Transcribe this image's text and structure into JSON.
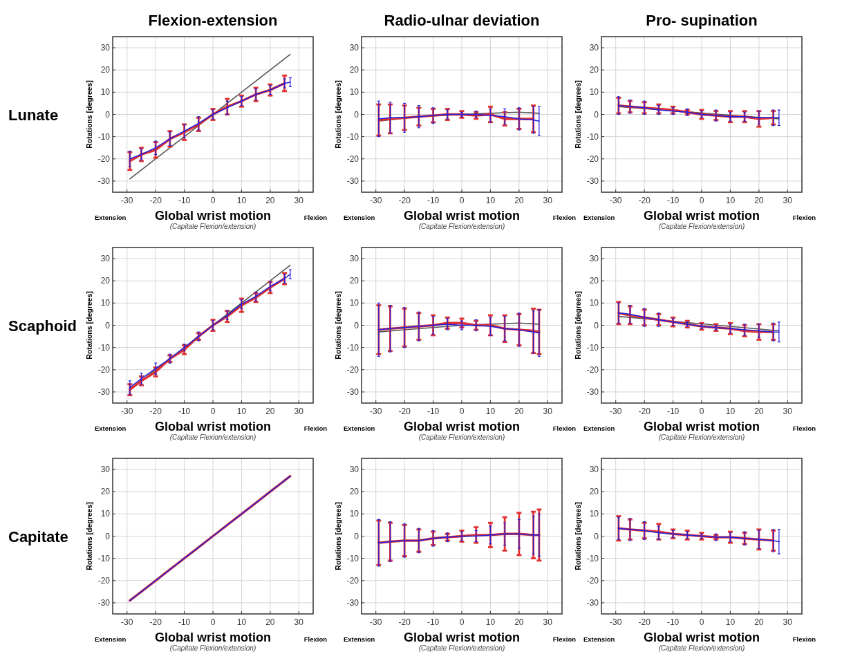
{
  "chart_data": [
    {
      "type": "line",
      "title": "Flexion-extension",
      "xlabel": "Global wrist motion",
      "ylabel": "Rotations [degrees]",
      "annotations": [
        "Extension",
        "Flexion",
        "(Capitate Flexion/extension)",
        "Lunate"
      ],
      "xlim": [
        -35,
        35
      ],
      "ylim": [
        -35,
        35
      ],
      "xticks": [
        -30,
        -20,
        -10,
        0,
        10,
        20,
        30
      ],
      "yticks": [
        -30,
        -20,
        -10,
        0,
        10,
        20,
        30
      ],
      "grid": true,
      "series": [
        {
          "color": "#555555",
          "x": [
            -29,
            27
          ],
          "values": [
            -29,
            27
          ]
        },
        {
          "color": "#e03030",
          "x": [
            -29,
            -25,
            -20,
            -15,
            -10,
            -5,
            0,
            5,
            10,
            15,
            20,
            25
          ],
          "values": [
            -21,
            -18,
            -16,
            -11,
            -8,
            -4.5,
            0,
            3.5,
            6,
            9,
            11,
            14
          ],
          "errors": [
            4,
            3,
            3.5,
            3.5,
            3.5,
            3,
            2.5,
            3.5,
            2.5,
            3,
            2.5,
            3.5
          ]
        },
        {
          "color": "#2020e0",
          "x": [
            -29,
            -25,
            -20,
            -15,
            -10,
            -5,
            0,
            5,
            10,
            15,
            20,
            25,
            27
          ],
          "values": [
            -20,
            -18,
            -15,
            -11,
            -7.5,
            -4,
            0,
            3,
            6,
            9,
            11,
            14,
            14.5
          ],
          "errors": [
            3.5,
            2.5,
            3,
            3,
            3,
            3,
            2,
            3,
            2,
            2.5,
            2,
            2,
            2
          ]
        }
      ]
    },
    {
      "type": "line",
      "title": "Radio-ulnar deviation",
      "xlabel": "Global wrist motion",
      "ylabel": "Rotations [degrees]",
      "annotations": [
        "Extension",
        "Flexion",
        "(Capitate Flexion/extension)"
      ],
      "xlim": [
        -35,
        35
      ],
      "ylim": [
        -35,
        35
      ],
      "xticks": [
        -30,
        -20,
        -10,
        0,
        10,
        20,
        30
      ],
      "yticks": [
        -30,
        -20,
        -10,
        0,
        10,
        20,
        30
      ],
      "grid": true,
      "series": [
        {
          "color": "#555555",
          "x": [
            -29,
            -15,
            0,
            10,
            20,
            27
          ],
          "values": [
            -3,
            -1,
            0,
            0.5,
            1,
            0.5
          ]
        },
        {
          "color": "#e03030",
          "x": [
            -29,
            -25,
            -20,
            -15,
            -10,
            -5,
            0,
            5,
            10,
            15,
            20,
            25
          ],
          "values": [
            -2.5,
            -2,
            -1.5,
            -1,
            -0.5,
            0,
            0,
            -0.5,
            0,
            -2,
            -2,
            -2
          ],
          "errors": [
            7,
            6.5,
            5.5,
            4,
            3,
            2.5,
            1.5,
            1.5,
            3.5,
            3,
            4.5,
            6
          ]
        },
        {
          "color": "#2020e0",
          "x": [
            -29,
            -25,
            -20,
            -15,
            -10,
            -5,
            0,
            5,
            10,
            15,
            20,
            25,
            27
          ],
          "values": [
            -2,
            -1.5,
            -1.5,
            -1,
            -0.5,
            0,
            0,
            0,
            -0.5,
            -1,
            -2,
            -2.5,
            -3
          ],
          "errors": [
            8,
            7,
            6.5,
            5,
            3.5,
            2,
            1,
            1.5,
            3,
            3.5,
            5,
            6,
            6.5
          ]
        }
      ]
    },
    {
      "type": "line",
      "title": "Pro- supination",
      "xlabel": "Global wrist motion",
      "ylabel": "Rotations [degrees]",
      "annotations": [
        "Extension",
        "Flexion",
        "(Capitate Flexion/extension)"
      ],
      "xlim": [
        -35,
        35
      ],
      "ylim": [
        -35,
        35
      ],
      "xticks": [
        -30,
        -20,
        -10,
        0,
        10,
        20,
        30
      ],
      "yticks": [
        -30,
        -20,
        -10,
        0,
        10,
        20,
        30
      ],
      "grid": true,
      "series": [
        {
          "color": "#555555",
          "x": [
            -29,
            27
          ],
          "values": [
            3.5,
            -2
          ]
        },
        {
          "color": "#e03030",
          "x": [
            -29,
            -25,
            -20,
            -15,
            -10,
            -5,
            0,
            5,
            10,
            15,
            20,
            25
          ],
          "values": [
            4,
            3.5,
            3,
            2.5,
            2,
            1,
            0,
            -0.5,
            -1,
            -1,
            -2,
            -1.5
          ],
          "errors": [
            3.5,
            2.5,
            2.5,
            2,
            1.5,
            1,
            2,
            2,
            2.5,
            2.5,
            3.5,
            3
          ]
        },
        {
          "color": "#2020e0",
          "x": [
            -29,
            -25,
            -20,
            -15,
            -10,
            -5,
            0,
            5,
            10,
            15,
            20,
            25,
            27
          ],
          "values": [
            4,
            3.5,
            3,
            2,
            1.5,
            1,
            0,
            -0.5,
            -1,
            -1,
            -1.5,
            -1.5,
            -1.5
          ],
          "errors": [
            4,
            3,
            3,
            2,
            1.5,
            1.5,
            1.5,
            2.5,
            2,
            2,
            3,
            3.5,
            3.5
          ]
        }
      ]
    },
    {
      "type": "line",
      "xlabel": "Global wrist motion",
      "ylabel": "Rotations [degrees]",
      "annotations": [
        "Extension",
        "Flexion",
        "(Capitate Flexion/extension)",
        "Scaphoid"
      ],
      "xlim": [
        -35,
        35
      ],
      "ylim": [
        -35,
        35
      ],
      "xticks": [
        -30,
        -20,
        -10,
        0,
        10,
        20,
        30
      ],
      "yticks": [
        -30,
        -20,
        -10,
        0,
        10,
        20,
        30
      ],
      "grid": true,
      "series": [
        {
          "color": "#555555",
          "x": [
            -29,
            27
          ],
          "values": [
            -29,
            27
          ]
        },
        {
          "color": "#e03030",
          "x": [
            -29,
            -25,
            -20,
            -15,
            -10,
            -5,
            0,
            5,
            10,
            15,
            20,
            25
          ],
          "values": [
            -29,
            -25,
            -21,
            -15,
            -11,
            -5,
            0,
            4,
            9,
            12.5,
            17,
            21
          ],
          "errors": [
            2.5,
            2,
            2,
            1.5,
            2,
            1.5,
            2.5,
            2.5,
            3,
            2,
            2.5,
            2.5
          ]
        },
        {
          "color": "#2020e0",
          "x": [
            -29,
            -25,
            -20,
            -15,
            -10,
            -5,
            0,
            5,
            10,
            15,
            20,
            25,
            27
          ],
          "values": [
            -28,
            -24,
            -19.5,
            -15,
            -10,
            -5,
            0,
            4.5,
            9.5,
            13,
            17.5,
            21,
            23
          ],
          "errors": [
            3,
            2.5,
            2.5,
            2,
            1.5,
            2,
            2,
            2,
            2,
            2,
            2,
            2,
            2
          ]
        }
      ]
    },
    {
      "type": "line",
      "xlabel": "Global wrist motion",
      "ylabel": "Rotations [degrees]",
      "annotations": [
        "Extension",
        "Flexion",
        "(Capitate Flexion/extension)"
      ],
      "xlim": [
        -35,
        35
      ],
      "ylim": [
        -35,
        35
      ],
      "xticks": [
        -30,
        -20,
        -10,
        0,
        10,
        20,
        30
      ],
      "yticks": [
        -30,
        -20,
        -10,
        0,
        10,
        20,
        30
      ],
      "grid": true,
      "series": [
        {
          "color": "#555555",
          "x": [
            -29,
            -20,
            -10,
            0,
            10,
            20,
            27
          ],
          "values": [
            -3,
            -2,
            -1,
            0,
            0.5,
            1,
            0.5
          ]
        },
        {
          "color": "#e03030",
          "x": [
            -29,
            -25,
            -20,
            -15,
            -10,
            -5,
            0,
            5,
            10,
            15,
            20,
            25,
            27
          ],
          "values": [
            -2,
            -1.5,
            -1,
            -0.5,
            0,
            1,
            1,
            0,
            0,
            -1.5,
            -2,
            -2.5,
            -3
          ],
          "errors": [
            11,
            10,
            8.5,
            6,
            4.5,
            2.5,
            2,
            2,
            4.5,
            6,
            7,
            10,
            10
          ]
        },
        {
          "color": "#2020e0",
          "x": [
            -29,
            -25,
            -20,
            -15,
            -10,
            -5,
            0,
            5,
            10,
            15,
            20,
            25,
            27
          ],
          "values": [
            -2,
            -1.5,
            -1,
            -0.5,
            0,
            0.5,
            0,
            0,
            -0.5,
            -1.5,
            -2,
            -3,
            -3.5
          ],
          "errors": [
            12,
            10.5,
            9,
            6.5,
            4,
            2.5,
            2,
            2.5,
            4,
            5.5,
            7.5,
            9.5,
            10.5
          ]
        }
      ]
    },
    {
      "type": "line",
      "xlabel": "Global wrist motion",
      "ylabel": "Rotations [degrees]",
      "annotations": [
        "Extension",
        "Flexion",
        "(Capitate Flexion/extension)"
      ],
      "xlim": [
        -35,
        35
      ],
      "ylim": [
        -35,
        35
      ],
      "xticks": [
        -30,
        -20,
        -10,
        0,
        10,
        20,
        30
      ],
      "yticks": [
        -30,
        -20,
        -10,
        0,
        10,
        20,
        30
      ],
      "grid": true,
      "series": [
        {
          "color": "#555555",
          "x": [
            -29,
            27
          ],
          "values": [
            4,
            -2.5
          ]
        },
        {
          "color": "#e03030",
          "x": [
            -29,
            -25,
            -20,
            -15,
            -10,
            -5,
            0,
            5,
            10,
            15,
            20,
            25
          ],
          "values": [
            5.5,
            4.5,
            3.5,
            2.5,
            1.5,
            0.5,
            -0.5,
            -1,
            -1.5,
            -2.5,
            -3,
            -3
          ],
          "errors": [
            5,
            4,
            3.5,
            2.5,
            2,
            1.5,
            1.5,
            1.5,
            2.5,
            2.5,
            3.5,
            3.5
          ]
        },
        {
          "color": "#2020e0",
          "x": [
            -29,
            -25,
            -20,
            -15,
            -10,
            -5,
            0,
            5,
            10,
            15,
            20,
            25,
            27
          ],
          "values": [
            5.5,
            5,
            3.5,
            2.5,
            1.5,
            0.5,
            -0.5,
            -1,
            -1.5,
            -2,
            -2.5,
            -3,
            -3
          ],
          "errors": [
            4.5,
            4,
            4,
            3,
            1.5,
            1,
            1,
            1,
            2,
            2.5,
            3,
            4,
            4.5
          ]
        }
      ]
    },
    {
      "type": "line",
      "xlabel": "Global wrist motion",
      "ylabel": "Rotations [degrees]",
      "annotations": [
        "Extension",
        "Flexion",
        "(Capitate Flexion/extension)",
        "Capitate"
      ],
      "xlim": [
        -35,
        35
      ],
      "ylim": [
        -35,
        35
      ],
      "xticks": [
        -30,
        -20,
        -10,
        0,
        10,
        20,
        30
      ],
      "yticks": [
        -30,
        -20,
        -10,
        0,
        10,
        20,
        30
      ],
      "grid": true,
      "series": [
        {
          "color": "#e03030",
          "x": [
            -29,
            -25,
            -20,
            -15,
            -10,
            -5,
            0,
            5,
            10,
            15,
            20,
            25,
            27
          ],
          "values": [
            -29,
            -25,
            -20,
            -15,
            -10,
            -5,
            0,
            5,
            10,
            15,
            20,
            25,
            27
          ]
        },
        {
          "color": "#2020e0",
          "x": [
            -29,
            -25,
            -20,
            -15,
            -10,
            -5,
            0,
            5,
            10,
            15,
            20,
            25,
            27
          ],
          "values": [
            -29,
            -25,
            -20,
            -15,
            -10,
            -5,
            0,
            5,
            10,
            15,
            20,
            25,
            27
          ]
        }
      ]
    },
    {
      "type": "line",
      "xlabel": "Global wrist motion",
      "ylabel": "Rotations [degrees]",
      "annotations": [
        "Extension",
        "Flexion",
        "(Capitate Flexion/extension)"
      ],
      "xlim": [
        -35,
        35
      ],
      "ylim": [
        -35,
        35
      ],
      "xticks": [
        -30,
        -20,
        -10,
        0,
        10,
        20,
        30
      ],
      "yticks": [
        -30,
        -20,
        -10,
        0,
        10,
        20,
        30
      ],
      "grid": true,
      "series": [
        {
          "color": "#e03030",
          "x": [
            -29,
            -25,
            -20,
            -15,
            -10,
            -5,
            0,
            5,
            10,
            15,
            20,
            25,
            27
          ],
          "values": [
            -3,
            -2.5,
            -2,
            -2,
            -1,
            -0.5,
            0,
            0.5,
            0.5,
            1,
            1,
            0.5,
            0.5
          ],
          "errors": [
            10,
            8.5,
            7,
            5,
            3,
            1.5,
            2.5,
            3.5,
            5.5,
            7.5,
            9.5,
            10.5,
            11.5
          ]
        },
        {
          "color": "#2020e0",
          "x": [
            -29,
            -25,
            -20,
            -15,
            -10,
            -5,
            0,
            5,
            10,
            15,
            20,
            25,
            27
          ],
          "values": [
            -3,
            -2.5,
            -2,
            -2,
            -1,
            -0.5,
            0,
            0,
            0.5,
            1,
            1,
            0.5,
            0.5
          ],
          "errors": [
            10.5,
            9,
            7.5,
            5.5,
            3.5,
            2,
            2,
            2.5,
            4,
            5,
            6.5,
            8.5,
            9.5
          ]
        }
      ]
    },
    {
      "type": "line",
      "xlabel": "Global wrist motion",
      "ylabel": "Rotations [degrees]",
      "annotations": [
        "Extension",
        "Flexion",
        "(Capitate Flexion/extension)"
      ],
      "xlim": [
        -35,
        35
      ],
      "ylim": [
        -35,
        35
      ],
      "xticks": [
        -30,
        -20,
        -10,
        0,
        10,
        20,
        30
      ],
      "yticks": [
        -30,
        -20,
        -10,
        0,
        10,
        20,
        30
      ],
      "grid": true,
      "series": [
        {
          "color": "#e03030",
          "x": [
            -29,
            -25,
            -20,
            -15,
            -10,
            -5,
            0,
            5,
            10,
            15,
            20,
            25
          ],
          "values": [
            3.5,
            3,
            2.5,
            2,
            1,
            0.5,
            0,
            -0.5,
            -0.5,
            -1,
            -1.5,
            -2
          ],
          "errors": [
            5.5,
            4.5,
            3.5,
            3.5,
            2,
            2,
            1.5,
            1,
            2.5,
            2.5,
            4.5,
            4.5
          ]
        },
        {
          "color": "#2020e0",
          "x": [
            -29,
            -25,
            -20,
            -15,
            -10,
            -5,
            0,
            5,
            10,
            15,
            20,
            25,
            27
          ],
          "values": [
            3.5,
            3,
            2.5,
            1.5,
            1,
            0.5,
            0,
            -0.5,
            -0.5,
            -1,
            -1.5,
            -2,
            -2.5
          ],
          "errors": [
            5,
            5,
            4,
            3,
            1.5,
            1.5,
            1,
            1.5,
            2,
            3,
            4,
            5,
            5.5
          ]
        }
      ]
    }
  ]
}
